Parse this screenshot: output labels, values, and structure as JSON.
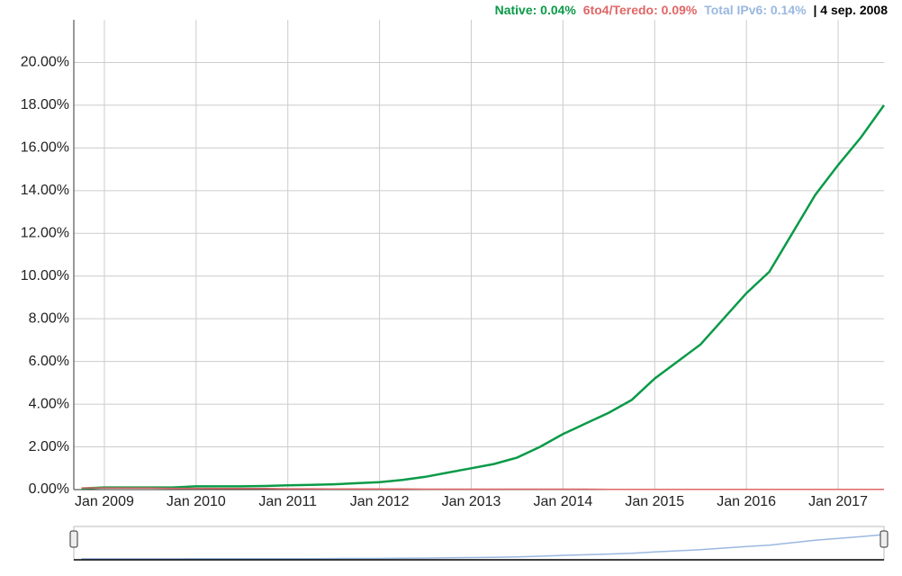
{
  "chart_data": {
    "type": "line",
    "header": {
      "native": "Native: 0.04%",
      "teredo": "6to4/Teredo: 0.09%",
      "total": "Total IPv6: 0.14%",
      "date": "| 4 sep. 2008"
    },
    "x": [
      "2008-10",
      "2009-01",
      "2009-04",
      "2009-07",
      "2009-10",
      "2010-01",
      "2010-04",
      "2010-07",
      "2010-10",
      "2011-01",
      "2011-04",
      "2011-07",
      "2011-10",
      "2012-01",
      "2012-04",
      "2012-07",
      "2012-10",
      "2013-01",
      "2013-04",
      "2013-07",
      "2013-10",
      "2014-01",
      "2014-04",
      "2014-07",
      "2014-10",
      "2015-01",
      "2015-04",
      "2015-07",
      "2015-10",
      "2016-01",
      "2016-04",
      "2016-07",
      "2016-10",
      "2017-01",
      "2017-04",
      "2017-07"
    ],
    "series": [
      {
        "name": "Native",
        "color": "#0a9a48",
        "values": [
          0.05,
          0.1,
          0.1,
          0.1,
          0.1,
          0.15,
          0.15,
          0.15,
          0.17,
          0.2,
          0.22,
          0.25,
          0.3,
          0.35,
          0.45,
          0.6,
          0.8,
          1.0,
          1.2,
          1.5,
          2.0,
          2.6,
          3.1,
          3.6,
          4.2,
          5.2,
          6.0,
          6.8,
          8.0,
          9.2,
          10.2,
          12.0,
          13.8,
          15.2,
          16.5,
          18.0
        ]
      },
      {
        "name": "6to4/Teredo",
        "color": "#e06666",
        "values": [
          0.08,
          0.08,
          0.07,
          0.07,
          0.06,
          0.06,
          0.05,
          0.05,
          0.05,
          0.04,
          0.04,
          0.03,
          0.03,
          0.03,
          0.03,
          0.02,
          0.02,
          0.02,
          0.02,
          0.02,
          0.02,
          0.02,
          0.02,
          0.01,
          0.01,
          0.01,
          0.01,
          0.01,
          0.01,
          0.01,
          0.01,
          0.01,
          0.01,
          0.01,
          0.01,
          0.01
        ]
      }
    ],
    "xlim": [
      "2008-09",
      "2017-07"
    ],
    "xticks": [
      {
        "value": "2009-01",
        "label": "Jan 2009"
      },
      {
        "value": "2010-01",
        "label": "Jan 2010"
      },
      {
        "value": "2011-01",
        "label": "Jan 2011"
      },
      {
        "value": "2012-01",
        "label": "Jan 2012"
      },
      {
        "value": "2013-01",
        "label": "Jan 2013"
      },
      {
        "value": "2014-01",
        "label": "Jan 2014"
      },
      {
        "value": "2015-01",
        "label": "Jan 2015"
      },
      {
        "value": "2016-01",
        "label": "Jan 2016"
      },
      {
        "value": "2017-01",
        "label": "Jan 2017"
      }
    ],
    "ylim": [
      0,
      22
    ],
    "yticks": [
      {
        "value": 0,
        "label": "0.00%"
      },
      {
        "value": 2,
        "label": "2.00%"
      },
      {
        "value": 4,
        "label": "4.00%"
      },
      {
        "value": 6,
        "label": "6.00%"
      },
      {
        "value": 8,
        "label": "8.00%"
      },
      {
        "value": 10,
        "label": "10.00%"
      },
      {
        "value": 12,
        "label": "12.00%"
      },
      {
        "value": 14,
        "label": "14.00%"
      },
      {
        "value": 16,
        "label": "16.00%"
      },
      {
        "value": 18,
        "label": "18.00%"
      },
      {
        "value": 20,
        "label": "20.00%"
      }
    ],
    "grid": true
  }
}
